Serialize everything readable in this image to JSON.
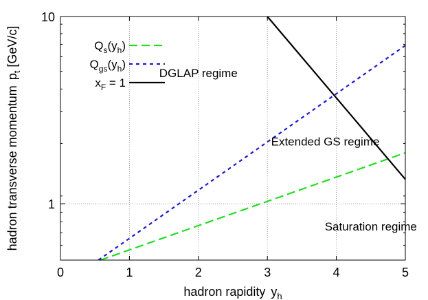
{
  "chart_data": {
    "type": "line",
    "title": "",
    "xlabel": "hadron rapidity",
    "xlabel_sym": "y",
    "xlabel_sub": "h",
    "ylabel": "hadron transverse momentum",
    "ylabel_sym": "p",
    "ylabel_sub": "t",
    "ylabel_unit": "[GeV/c]",
    "x_scale": "linear",
    "y_scale": "log",
    "xlim": [
      0,
      5
    ],
    "ylim": [
      0.5,
      10
    ],
    "x_ticks": [
      0,
      1,
      2,
      3,
      4,
      5
    ],
    "x_tick_labels": [
      "0",
      "1",
      "2",
      "3",
      "4",
      "5"
    ],
    "y_ticks": [
      1,
      10
    ],
    "y_tick_labels": [
      "1",
      "10"
    ],
    "grid": true,
    "legend_position": "top-left",
    "series": [
      {
        "name": "Q",
        "name_sub": "s",
        "name_tail": "(y",
        "name_tail_sub": "h",
        "name_end": ")",
        "color": "#22dd22",
        "dash": "dashed",
        "x": [
          0.58,
          5
        ],
        "y": [
          0.5,
          1.87
        ]
      },
      {
        "name": "Q",
        "name_sub": "gs",
        "name_tail": "(y",
        "name_tail_sub": "h",
        "name_end": ")",
        "color": "#1a1acc",
        "dash": "dotted",
        "x": [
          0.55,
          5
        ],
        "y": [
          0.5,
          7.0
        ]
      },
      {
        "name": "x",
        "name_sub": "F",
        "name_tail": " = 1",
        "name_tail_sub": "",
        "name_end": "",
        "color": "#000000",
        "dash": "solid",
        "x": [
          3.0,
          5
        ],
        "y": [
          10.0,
          1.35
        ]
      }
    ],
    "annotations": [
      {
        "text": "DGLAP regime",
        "x": 2.0,
        "y": 4.75
      },
      {
        "text": "Extended GS regime",
        "x": 3.84,
        "y": 2.05
      },
      {
        "text": "Saturation regime",
        "x": 4.5,
        "y": 0.72
      }
    ]
  }
}
